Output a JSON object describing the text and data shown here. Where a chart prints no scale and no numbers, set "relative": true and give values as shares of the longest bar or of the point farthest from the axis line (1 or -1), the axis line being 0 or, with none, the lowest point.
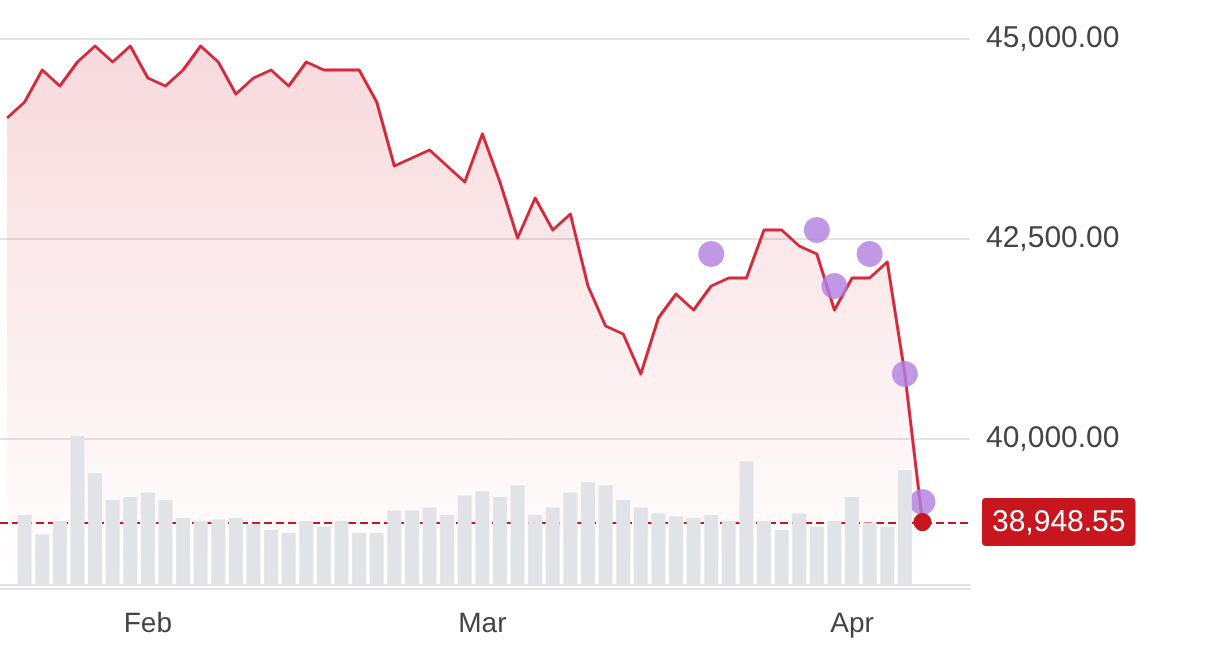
{
  "chart_data": [
    {
      "type": "area",
      "categories": [
        null,
        null,
        null,
        null,
        null,
        null,
        null,
        null,
        "Feb",
        null,
        null,
        null,
        null,
        null,
        null,
        null,
        null,
        null,
        null,
        null,
        null,
        null,
        null,
        null,
        null,
        null,
        null,
        "Mar",
        null,
        null,
        null,
        null,
        null,
        null,
        null,
        null,
        null,
        null,
        null,
        null,
        null,
        null,
        null,
        null,
        null,
        null,
        null,
        null,
        "Apr",
        null,
        null,
        null,
        null
      ],
      "series": [
        {
          "type": "area",
          "color": "#d42a3c",
          "values": [
            44000,
            44200,
            44600,
            44400,
            44700,
            44900,
            44700,
            44900,
            44500,
            44400,
            44600,
            44900,
            44700,
            44300,
            44500,
            44600,
            44400,
            44700,
            44600,
            44600,
            44600,
            44200,
            43400,
            43500,
            43600,
            43400,
            43200,
            43800,
            43200,
            42500,
            43000,
            42600,
            42800,
            41900,
            41400,
            41300,
            40800,
            41500,
            41800,
            41600,
            41900,
            42000,
            42000,
            42600,
            42600,
            42400,
            42300,
            41600,
            42000,
            42000,
            42200,
            40800,
            38948.55
          ]
        },
        {
          "type": "scatter",
          "color": "#b07ee0",
          "values": [
            null,
            null,
            null,
            null,
            null,
            null,
            null,
            null,
            null,
            null,
            null,
            null,
            null,
            null,
            null,
            null,
            null,
            null,
            null,
            null,
            null,
            null,
            null,
            null,
            null,
            null,
            null,
            null,
            null,
            null,
            null,
            null,
            null,
            null,
            null,
            null,
            null,
            null,
            null,
            null,
            42300,
            null,
            null,
            null,
            null,
            null,
            42600,
            41900,
            null,
            42300,
            null,
            40800,
            39200
          ]
        }
      ],
      "ylim": [
        38125,
        45000
      ],
      "yticks": [
        {
          "value": 40000,
          "label": "40,000.00"
        },
        {
          "value": 42500,
          "label": "42,500.00"
        },
        {
          "value": 45000,
          "label": "45,000.00"
        }
      ],
      "grid": "y",
      "ref_lines": [
        {
          "axis": "y",
          "value": 38948.55,
          "label": "38,948.55",
          "color": "#c8161e",
          "line_style": "dashed"
        }
      ]
    },
    {
      "type": "bar",
      "relative": true,
      "color": "#e1e3e6",
      "categories": [
        null,
        null,
        null,
        null,
        null,
        null,
        null,
        null,
        null,
        null,
        null,
        null,
        null,
        null,
        null,
        null,
        null,
        null,
        null,
        null,
        null,
        null,
        null,
        null,
        null,
        null,
        null,
        null,
        null,
        null,
        null,
        null,
        null,
        null,
        null,
        null,
        null,
        null,
        null,
        null,
        null,
        null,
        null,
        null,
        null,
        null,
        null,
        null,
        null,
        null,
        null,
        null,
        null
      ],
      "values": [
        null,
        0.47,
        0.34,
        0.43,
        1,
        0.75,
        0.57,
        0.59,
        0.62,
        0.57,
        0.45,
        0.43,
        0.44,
        0.45,
        0.41,
        0.37,
        0.35,
        0.43,
        0.39,
        0.43,
        0.35,
        0.35,
        0.5,
        0.5,
        0.52,
        0.47,
        0.6,
        0.63,
        0.59,
        0.67,
        0.47,
        0.52,
        0.62,
        0.69,
        0.67,
        0.57,
        0.52,
        0.48,
        0.46,
        0.45,
        0.47,
        0.43,
        0.83,
        0.43,
        0.37,
        0.48,
        0.39,
        0.43,
        0.59,
        0.42,
        0.39,
        0.77,
        null
      ]
    }
  ]
}
